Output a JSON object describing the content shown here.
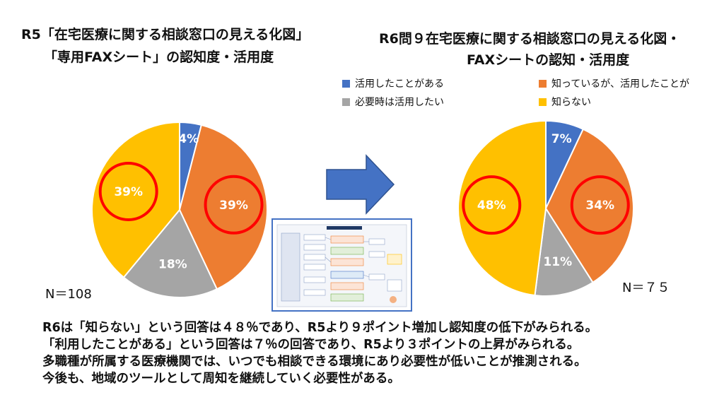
{
  "left_title": [
    "R5「在宅医療に関する相談窓口の見える化図」",
    "「専用FAXシート」の認知度・活用度"
  ],
  "right_title": [
    "R6問９在宅医療に関する相談窓口の見える化図・",
    "FAXシートの認知・活用度"
  ],
  "legend": [
    {
      "label": "活用したことがある",
      "color": "#4472c4"
    },
    {
      "label": "知っているが、活用したことが",
      "color": "#ed7d31"
    },
    {
      "label": "必要時は活用したい",
      "color": "#a5a5a5"
    },
    {
      "label": "知らない",
      "color": "#ffc000"
    }
  ],
  "left_n": "N＝108",
  "right_n": "N＝７５",
  "summary": [
    "R6は「知らない」という回答は４８％であり、R5より９ポイント増加し認知度の低下がみられる。",
    "「利用したことがある」という回答は７％の回答であり、R5より３ポイントの上昇がみられる。",
    "多職種が所属する医療機関では、いつでも相談できる環境にあり必要性が低いことが推測される。",
    "今後も、地域のツールとして周知を継続していく必要性がある。"
  ],
  "chart_data": [
    {
      "type": "pie",
      "title": "R5「在宅医療に関する相談窓口の見える化図」「専用FAXシート」の認知度・活用度",
      "categories": [
        "活用したことがある",
        "知っているが、活用したことがない",
        "必要時は活用したい",
        "知らない"
      ],
      "values": [
        4,
        39,
        18,
        39
      ],
      "labels": [
        "4%",
        "39%",
        "18%",
        "39%"
      ],
      "colors": [
        "#4472c4",
        "#ed7d31",
        "#a5a5a5",
        "#ffc000"
      ],
      "highlighted": [
        "39%",
        "39%"
      ]
    },
    {
      "type": "pie",
      "title": "R6問９在宅医療に関する相談窓口の見える化図・FAXシートの認知・活用度",
      "categories": [
        "活用したことがある",
        "知っているが、活用したことがない",
        "必要時は活用したい",
        "知らない"
      ],
      "values": [
        7,
        34,
        11,
        48
      ],
      "labels": [
        "7%",
        "34%",
        "11%",
        "48%"
      ],
      "colors": [
        "#4472c4",
        "#ed7d31",
        "#a5a5a5",
        "#ffc000"
      ],
      "highlighted": [
        "48%",
        "34%"
      ]
    }
  ]
}
